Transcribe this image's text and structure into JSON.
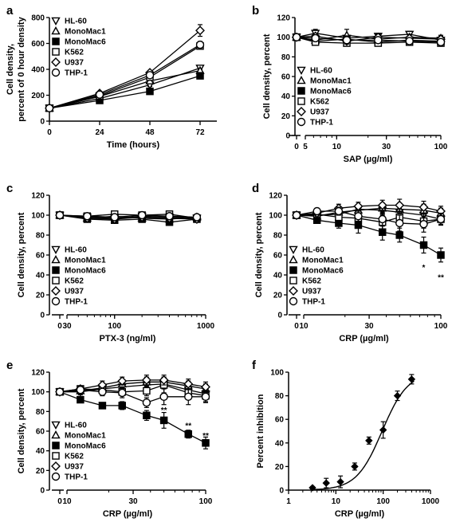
{
  "chart_data": [
    {
      "panel": "a",
      "type": "line",
      "scale": "linear",
      "xlabel": "Time (hours)",
      "ylabel": [
        "Cell density,",
        "percent of 0 hour density"
      ],
      "xlim": [
        0,
        80
      ],
      "ylim": [
        0,
        800
      ],
      "xticks": [
        0,
        24,
        48,
        72
      ],
      "xtick_labels": [
        "0",
        "24",
        "48",
        "72"
      ],
      "yticks": [
        0,
        200,
        400,
        600,
        800
      ],
      "ytick_labels": [
        "0",
        "200",
        "400",
        "600",
        "800"
      ],
      "legend": "top-left",
      "series": [
        {
          "name": "HL-60",
          "x": [
            0,
            24,
            48,
            72
          ],
          "y": [
            100,
            175,
            280,
            410
          ],
          "err": [
            0,
            8,
            12,
            15
          ]
        },
        {
          "name": "MonoMac1",
          "x": [
            0,
            24,
            48,
            72
          ],
          "y": [
            100,
            190,
            310,
            390
          ],
          "err": [
            0,
            8,
            12,
            15
          ]
        },
        {
          "name": "MonoMac6",
          "x": [
            0,
            24,
            48,
            72
          ],
          "y": [
            100,
            160,
            230,
            350
          ],
          "err": [
            0,
            8,
            12,
            18
          ]
        },
        {
          "name": "K562",
          "x": [
            0,
            24,
            48,
            72
          ],
          "y": [
            100,
            195,
            340,
            580
          ],
          "err": [
            0,
            8,
            12,
            25
          ]
        },
        {
          "name": "U937",
          "x": [
            0,
            24,
            48,
            72
          ],
          "y": [
            100,
            215,
            375,
            700
          ],
          "err": [
            0,
            8,
            15,
            45
          ]
        },
        {
          "name": "THP-1",
          "x": [
            0,
            24,
            48,
            72
          ],
          "y": [
            100,
            205,
            355,
            590
          ],
          "err": [
            0,
            8,
            12,
            25
          ]
        }
      ]
    },
    {
      "panel": "b",
      "type": "line",
      "scale": "log-broken",
      "xlabel": "SAP (µg/ml)",
      "ylabel": "Cell density, percent",
      "ylim": [
        0,
        120
      ],
      "yticks": [
        0,
        20,
        40,
        60,
        80,
        100,
        120
      ],
      "ytick_labels": [
        "0",
        "20",
        "40",
        "60",
        "80",
        "100",
        "120"
      ],
      "xticks": [
        0,
        5,
        10,
        30,
        100
      ],
      "xtick_labels": [
        "0",
        "5",
        "10",
        "30",
        "100"
      ],
      "legend": "bottom-left",
      "annotations": [],
      "series": [
        {
          "name": "HL-60",
          "x": [
            0,
            6.25,
            12.5,
            25,
            50,
            100
          ],
          "y": [
            100,
            104,
            99,
            101,
            103,
            97
          ],
          "err": [
            2,
            4,
            3,
            3,
            3,
            3
          ]
        },
        {
          "name": "MonoMac1",
          "x": [
            0,
            6.25,
            12.5,
            25,
            50,
            100
          ],
          "y": [
            100,
            97,
            102,
            98,
            100,
            99
          ],
          "err": [
            2,
            3,
            6,
            3,
            3,
            3
          ]
        },
        {
          "name": "MonoMac6",
          "x": [
            0,
            6.25,
            12.5,
            25,
            50,
            100
          ],
          "y": [
            100,
            96,
            98,
            95,
            97,
            96
          ],
          "err": [
            2,
            3,
            3,
            3,
            3,
            3
          ]
        },
        {
          "name": "K562",
          "x": [
            0,
            6.25,
            12.5,
            25,
            50,
            100
          ],
          "y": [
            100,
            95,
            94,
            94,
            95,
            94
          ],
          "err": [
            2,
            3,
            3,
            3,
            3,
            3
          ]
        },
        {
          "name": "U937",
          "x": [
            0,
            6.25,
            12.5,
            25,
            50,
            100
          ],
          "y": [
            100,
            101,
            96,
            100,
            99,
            98
          ],
          "err": [
            2,
            3,
            3,
            3,
            3,
            3
          ]
        },
        {
          "name": "THP-1",
          "x": [
            0,
            6.25,
            12.5,
            25,
            50,
            100
          ],
          "y": [
            100,
            99,
            97,
            97,
            96,
            95
          ],
          "err": [
            2,
            3,
            3,
            3,
            3,
            3
          ]
        }
      ]
    },
    {
      "panel": "c",
      "type": "line",
      "scale": "log-broken",
      "xlabel": "PTX-3 (ng/ml)",
      "ylabel": "Cell density, percent",
      "ylim": [
        0,
        120
      ],
      "yticks": [
        0,
        20,
        40,
        60,
        80,
        100,
        120
      ],
      "ytick_labels": [
        "0",
        "20",
        "40",
        "60",
        "80",
        "100",
        "120"
      ],
      "xticks": [
        0,
        30,
        100,
        1000
      ],
      "xtick_labels": [
        "0",
        "30",
        "100",
        "1000"
      ],
      "legend": "bottom-left",
      "annotations": [],
      "series": [
        {
          "name": "HL-60",
          "x": [
            0,
            50,
            100,
            200,
            400,
            800
          ],
          "y": [
            100,
            98,
            97,
            99,
            98,
            97
          ],
          "err": [
            2,
            3,
            3,
            3,
            3,
            3
          ]
        },
        {
          "name": "MonoMac1",
          "x": [
            0,
            50,
            100,
            200,
            400,
            800
          ],
          "y": [
            100,
            97,
            99,
            97,
            96,
            98
          ],
          "err": [
            2,
            3,
            3,
            3,
            3,
            3
          ]
        },
        {
          "name": "MonoMac6",
          "x": [
            0,
            50,
            100,
            200,
            400,
            800
          ],
          "y": [
            100,
            96,
            95,
            96,
            93,
            96
          ],
          "err": [
            2,
            3,
            3,
            3,
            3,
            3
          ]
        },
        {
          "name": "K562",
          "x": [
            0,
            50,
            100,
            200,
            400,
            800
          ],
          "y": [
            100,
            99,
            101,
            100,
            101,
            97
          ],
          "err": [
            2,
            3,
            3,
            3,
            3,
            3
          ]
        },
        {
          "name": "U937",
          "x": [
            0,
            50,
            100,
            200,
            400,
            800
          ],
          "y": [
            100,
            97,
            96,
            98,
            97,
            96
          ],
          "err": [
            2,
            3,
            3,
            3,
            3,
            3
          ]
        },
        {
          "name": "THP-1",
          "x": [
            0,
            50,
            100,
            200,
            400,
            800
          ],
          "y": [
            100,
            99,
            98,
            100,
            99,
            98
          ],
          "err": [
            2,
            3,
            3,
            3,
            3,
            3
          ]
        }
      ]
    },
    {
      "panel": "d",
      "type": "line",
      "scale": "log-broken",
      "xlabel": "CRP (µg/ml)",
      "ylabel": "Cell density, percent",
      "ylim": [
        0,
        120
      ],
      "yticks": [
        0,
        20,
        40,
        60,
        80,
        100,
        120
      ],
      "ytick_labels": [
        "0",
        "20",
        "40",
        "60",
        "80",
        "100",
        "120"
      ],
      "xticks": [
        0,
        10,
        30,
        100
      ],
      "xtick_labels": [
        "0",
        "10",
        "30",
        "100"
      ],
      "legend": "bottom-left",
      "annotations": [
        {
          "text": "*",
          "x": 75,
          "y": 48
        },
        {
          "text": "**",
          "x": 100,
          "y": 38
        }
      ],
      "series": [
        {
          "name": "HL-60",
          "x": [
            0,
            12.5,
            18,
            25,
            37.5,
            50,
            75,
            100
          ],
          "y": [
            100,
            100,
            101,
            106,
            105,
            103,
            100,
            96
          ],
          "err": [
            2,
            3,
            4,
            4,
            5,
            6,
            6,
            5
          ]
        },
        {
          "name": "MonoMac1",
          "x": [
            0,
            12.5,
            18,
            25,
            37.5,
            50,
            75,
            100
          ],
          "y": [
            100,
            99,
            103,
            105,
            107,
            106,
            105,
            102
          ],
          "err": [
            2,
            3,
            4,
            4,
            5,
            6,
            6,
            5
          ]
        },
        {
          "name": "MonoMac6",
          "x": [
            0,
            12.5,
            18,
            25,
            37.5,
            50,
            75,
            100
          ],
          "y": [
            100,
            95,
            92,
            90,
            83,
            80,
            70,
            60
          ],
          "err": [
            2,
            3,
            5,
            8,
            8,
            7,
            8,
            7
          ]
        },
        {
          "name": "K562",
          "x": [
            0,
            12.5,
            18,
            25,
            37.5,
            50,
            75,
            100
          ],
          "y": [
            100,
            101,
            98,
            97,
            93,
            98,
            94,
            96
          ],
          "err": [
            2,
            3,
            4,
            5,
            8,
            8,
            7,
            6
          ]
        },
        {
          "name": "U937",
          "x": [
            0,
            12.5,
            18,
            25,
            37.5,
            50,
            75,
            100
          ],
          "y": [
            100,
            102,
            107,
            109,
            110,
            110,
            108,
            104
          ],
          "err": [
            2,
            3,
            4,
            4,
            5,
            6,
            6,
            5
          ]
        },
        {
          "name": "THP-1",
          "x": [
            0,
            12.5,
            18,
            25,
            37.5,
            50,
            75,
            100
          ],
          "y": [
            100,
            104,
            104,
            99,
            96,
            92,
            91,
            96
          ],
          "err": [
            2,
            3,
            4,
            5,
            7,
            8,
            8,
            6
          ]
        }
      ]
    },
    {
      "panel": "e",
      "type": "line",
      "scale": "log-broken",
      "xlabel": "CRP (µg/ml)",
      "ylabel": "Cell density, percent",
      "ylim": [
        0,
        120
      ],
      "yticks": [
        0,
        20,
        40,
        60,
        80,
        100,
        120
      ],
      "ytick_labels": [
        "0",
        "20",
        "40",
        "60",
        "80",
        "100",
        "120"
      ],
      "xticks": [
        0,
        10,
        30,
        100
      ],
      "xtick_labels": [
        "0",
        "10",
        "30",
        "100"
      ],
      "legend": "bottom-left",
      "annotations": [
        {
          "text": "**",
          "x": 50,
          "y": 82
        },
        {
          "text": "**",
          "x": 75,
          "y": 66
        },
        {
          "text": "**",
          "x": 100,
          "y": 56
        }
      ],
      "series": [
        {
          "name": "HL-60",
          "x": [
            0,
            12.5,
            18,
            25,
            37.5,
            50,
            75,
            100
          ],
          "y": [
            100,
            100,
            103,
            105,
            107,
            108,
            102,
            98
          ],
          "err": [
            2,
            3,
            4,
            4,
            5,
            5,
            5,
            5
          ]
        },
        {
          "name": "MonoMac1",
          "x": [
            0,
            12.5,
            18,
            25,
            37.5,
            50,
            75,
            100
          ],
          "y": [
            100,
            101,
            104,
            108,
            110,
            110,
            106,
            103
          ],
          "err": [
            2,
            3,
            4,
            4,
            5,
            5,
            5,
            5
          ]
        },
        {
          "name": "MonoMac6",
          "x": [
            0,
            12.5,
            18,
            25,
            37.5,
            50,
            75,
            100
          ],
          "y": [
            100,
            92,
            86,
            86,
            76,
            71,
            57,
            48
          ],
          "err": [
            2,
            3,
            3,
            4,
            5,
            8,
            4,
            6
          ]
        },
        {
          "name": "K562",
          "x": [
            0,
            12.5,
            18,
            25,
            37.5,
            50,
            75,
            100
          ],
          "y": [
            100,
            103,
            102,
            100,
            101,
            107,
            99,
            96
          ],
          "err": [
            2,
            3,
            4,
            4,
            5,
            8,
            6,
            6
          ]
        },
        {
          "name": "U937",
          "x": [
            0,
            12.5,
            18,
            25,
            37.5,
            50,
            75,
            100
          ],
          "y": [
            100,
            103,
            107,
            111,
            112,
            112,
            108,
            105
          ],
          "err": [
            2,
            3,
            4,
            4,
            5,
            5,
            5,
            5
          ]
        },
        {
          "name": "THP-1",
          "x": [
            0,
            12.5,
            18,
            25,
            37.5,
            50,
            75,
            100
          ],
          "y": [
            100,
            102,
            100,
            99,
            89,
            95,
            95,
            95
          ],
          "err": [
            2,
            3,
            4,
            5,
            5,
            8,
            8,
            6
          ]
        }
      ]
    },
    {
      "panel": "f",
      "type": "scatter",
      "scale": "log",
      "xlabel": "CRP (µg/ml)",
      "ylabel": "Percent inhibition",
      "xlim": [
        1,
        1000
      ],
      "ylim": [
        0,
        100
      ],
      "xticks": [
        1,
        10,
        100,
        1000
      ],
      "xtick_labels": [
        "1",
        "10",
        "100",
        "1000"
      ],
      "yticks": [
        0,
        20,
        40,
        60,
        80,
        100
      ],
      "ytick_labels": [
        "0",
        "20",
        "40",
        "60",
        "80",
        "100"
      ],
      "fit": "sigmoidal dose-response",
      "fit_ec50": 95,
      "fit_hill": 1.6,
      "series": [
        {
          "x": [
            3.2,
            6.25,
            12.5,
            25,
            50,
            100,
            200,
            400
          ],
          "y": [
            2,
            6,
            7,
            20,
            42,
            51,
            80,
            94
          ],
          "err": [
            1,
            4,
            5,
            3,
            3,
            7,
            4,
            4
          ]
        }
      ]
    }
  ]
}
